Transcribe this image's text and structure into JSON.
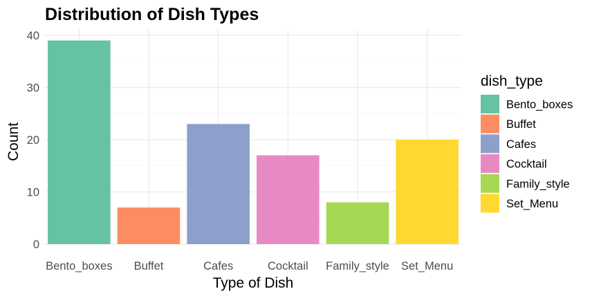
{
  "chart_data": {
    "type": "bar",
    "title": "Distribution of Dish Types",
    "xlabel": "Type of Dish",
    "ylabel": "Count",
    "categories": [
      "Bento_boxes",
      "Buffet",
      "Cafes",
      "Cocktail",
      "Family_style",
      "Set_Menu"
    ],
    "values": [
      39,
      7,
      23,
      17,
      8,
      20
    ],
    "colors": [
      "#66c2a5",
      "#fc8d62",
      "#8da0cb",
      "#e78ac3",
      "#a6d854",
      "#ffd92f"
    ],
    "ylim": [
      0,
      41
    ],
    "yticks": [
      0,
      10,
      20,
      30,
      40
    ],
    "grid": true,
    "legend": {
      "title": "dish_type",
      "position": "right"
    }
  }
}
